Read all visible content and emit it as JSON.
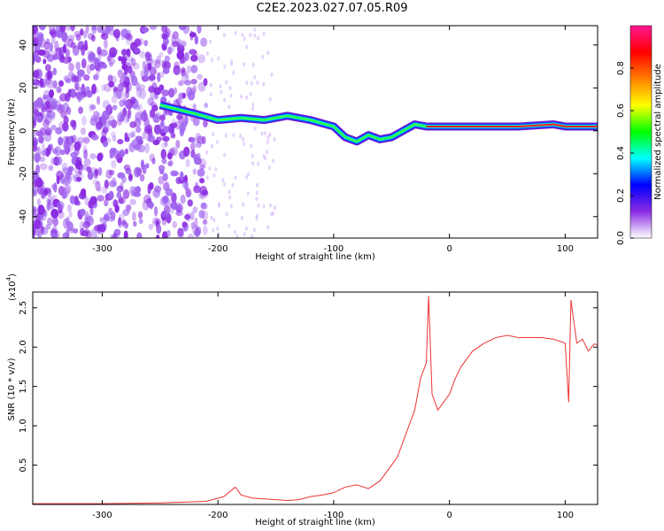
{
  "title": "C2E2.2023.027.07.05.R09",
  "chart_data": [
    {
      "type": "heatmap",
      "xlabel": "Height of straight line (km)",
      "ylabel": "Frequency (Hz)",
      "xlim": [
        -360,
        128
      ],
      "ylim": [
        -50,
        49
      ],
      "xticks": [
        -300,
        -200,
        -100,
        0,
        100
      ],
      "yticks": [
        -40,
        -20,
        0,
        20,
        40
      ],
      "colorbar": {
        "label": "Normalized spectral amplitude",
        "range": [
          0,
          1
        ],
        "ticks": [
          "0.0",
          "0.2",
          "0.4",
          "0.6",
          "0.8"
        ],
        "tick_values": [
          0.0,
          0.2,
          0.4,
          0.6,
          0.8
        ],
        "colors": [
          "#ffffff",
          "#8a2be2",
          "#0000ff",
          "#00ffff",
          "#00ff00",
          "#ffff00",
          "#ff7f00",
          "#ff0000",
          "#ff1493"
        ]
      },
      "signal_ridge": {
        "x": [
          -250,
          -220,
          -200,
          -180,
          -160,
          -140,
          -120,
          -100,
          -90,
          -80,
          -70,
          -60,
          -50,
          -40,
          -30,
          -20,
          0,
          20,
          60,
          90,
          100,
          128
        ],
        "y": [
          12,
          8,
          5,
          6,
          5,
          7,
          5,
          2,
          -3,
          -5,
          -2,
          -4,
          -3,
          0,
          3,
          2,
          2,
          2,
          2,
          3,
          2,
          2
        ]
      }
    },
    {
      "type": "line",
      "xlabel": "Height of straight line (km)",
      "ylabel": "SNR (10 * v/v)",
      "y_multiplier": "(x10",
      "y_exponent": "4",
      "y_close": ")",
      "xlim": [
        -360,
        128
      ],
      "ylim": [
        0,
        2.7
      ],
      "xticks": [
        -300,
        -200,
        -100,
        0,
        100
      ],
      "yticks": [
        0.5,
        1.0,
        1.5,
        2.0,
        2.5
      ],
      "ytick_labels": [
        "0.5",
        "1.0",
        "1.5",
        "2.0",
        "2.5"
      ],
      "color": "#ee3333",
      "series": [
        {
          "x": [
            -360,
            -300,
            -250,
            -210,
            -195,
            -185,
            -180,
            -170,
            -160,
            -150,
            -140,
            -130,
            -120,
            -110,
            -100,
            -90,
            -80,
            -70,
            -60,
            -50,
            -45,
            -40,
            -35,
            -30,
            -25,
            -20,
            -18,
            -15,
            -10,
            -5,
            0,
            5,
            10,
            20,
            30,
            40,
            50,
            60,
            80,
            90,
            100,
            103,
            105,
            110,
            115,
            120,
            125,
            128
          ],
          "y": [
            0.01,
            0.01,
            0.02,
            0.04,
            0.1,
            0.22,
            0.12,
            0.08,
            0.07,
            0.06,
            0.05,
            0.06,
            0.1,
            0.12,
            0.15,
            0.22,
            0.25,
            0.2,
            0.3,
            0.5,
            0.6,
            0.8,
            1.0,
            1.2,
            1.6,
            1.8,
            2.65,
            1.4,
            1.2,
            1.3,
            1.4,
            1.6,
            1.75,
            1.95,
            2.05,
            2.12,
            2.15,
            2.12,
            2.12,
            2.1,
            2.05,
            1.3,
            2.6,
            2.05,
            2.1,
            1.95,
            2.04,
            2.03
          ]
        }
      ]
    }
  ]
}
